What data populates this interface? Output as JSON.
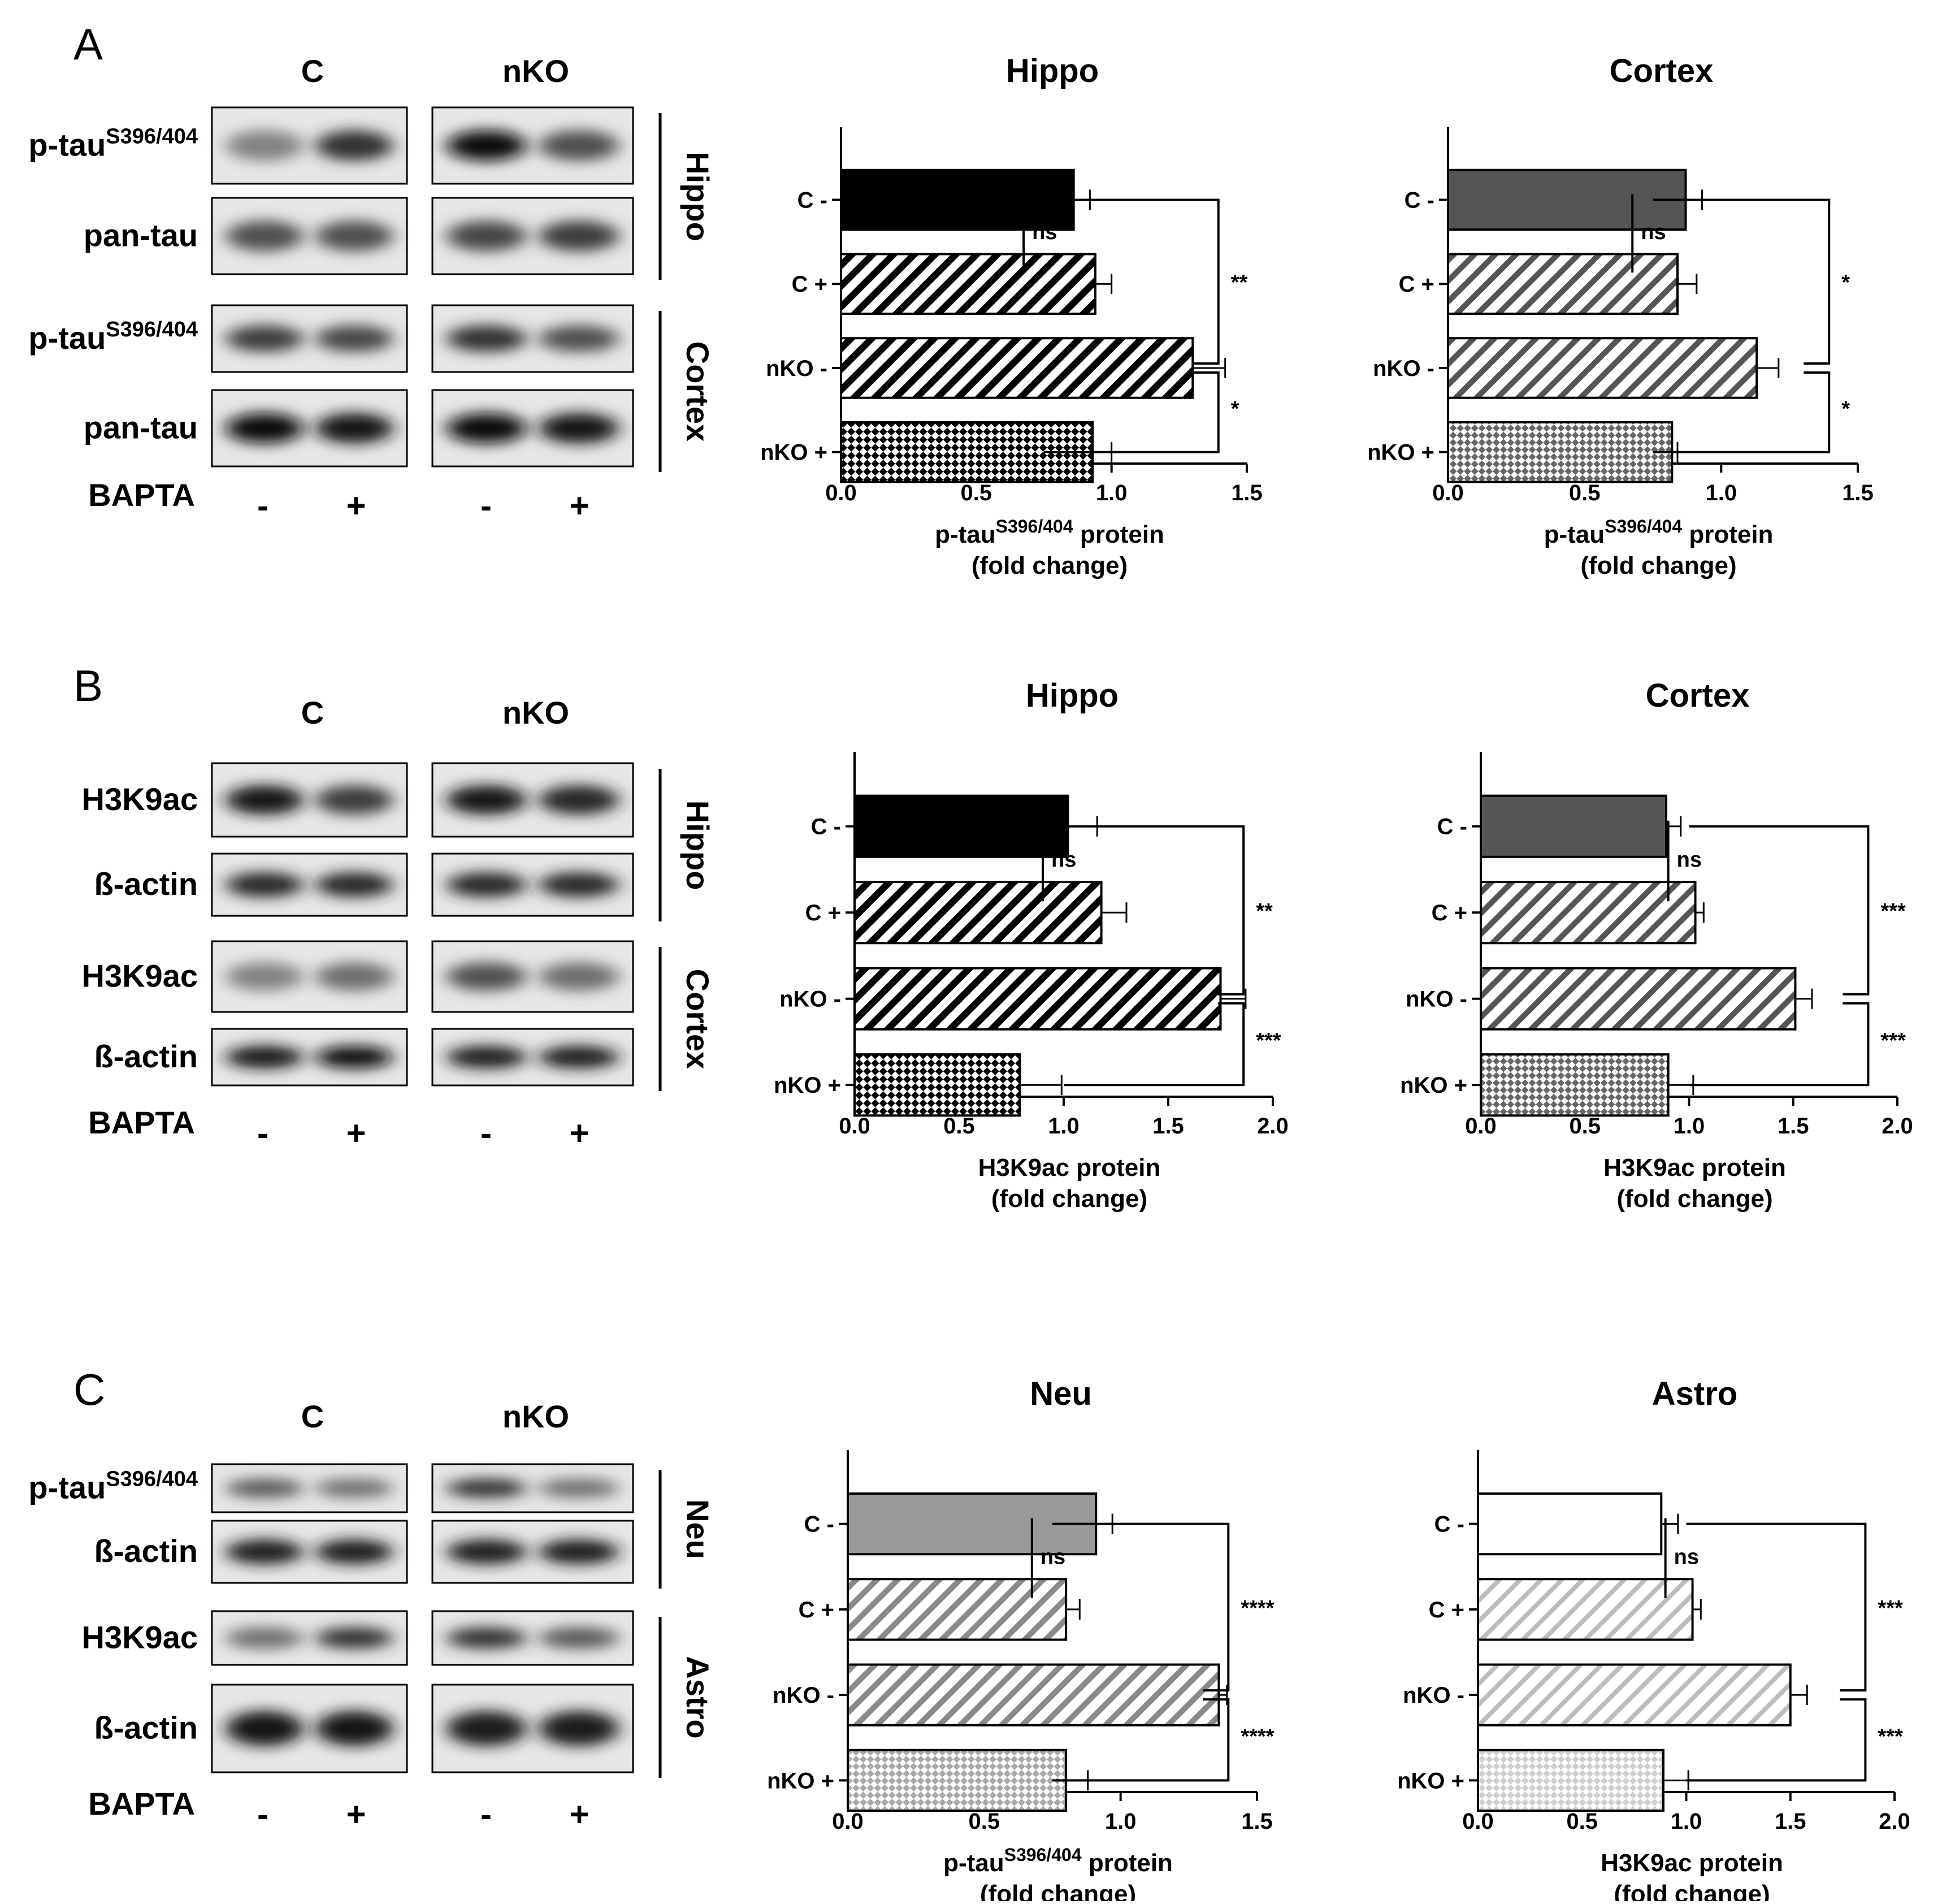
{
  "panels": [
    {
      "letter": "A",
      "groups": [
        "C",
        "nKO"
      ],
      "rows": [
        {
          "label": "p-tau",
          "sup": "S396/404",
          "region": "Hippo"
        },
        {
          "label": "pan-tau",
          "sup": "",
          "region": "Hippo"
        },
        {
          "label": "p-tau",
          "sup": "S396/404",
          "region": "Cortex"
        },
        {
          "label": "pan-tau",
          "sup": "",
          "region": "Cortex"
        }
      ],
      "regions": [
        "Hippo",
        "Cortex"
      ],
      "treatment_label": "BAPTA",
      "treatment_signs": [
        "-",
        "+",
        "-",
        "+"
      ]
    },
    {
      "letter": "B",
      "groups": [
        "C",
        "nKO"
      ],
      "rows": [
        {
          "label": "H3K9ac",
          "sup": "",
          "region": "Hippo"
        },
        {
          "label": "ß-actin",
          "sup": "",
          "region": "Hippo"
        },
        {
          "label": "H3K9ac",
          "sup": "",
          "region": "Cortex"
        },
        {
          "label": "ß-actin",
          "sup": "",
          "region": "Cortex"
        }
      ],
      "regions": [
        "Hippo",
        "Cortex"
      ],
      "treatment_label": "BAPTA",
      "treatment_signs": [
        "-",
        "+",
        "-",
        "+"
      ]
    },
    {
      "letter": "C",
      "groups": [
        "C",
        "nKO"
      ],
      "rows": [
        {
          "label": "p-tau",
          "sup": "S396/404",
          "region": "Neu"
        },
        {
          "label": "ß-actin",
          "sup": "",
          "region": "Neu"
        },
        {
          "label": "H3K9ac",
          "sup": "",
          "region": "Astro"
        },
        {
          "label": "ß-actin",
          "sup": "",
          "region": "Astro"
        }
      ],
      "regions": [
        "Neu",
        "Astro"
      ],
      "treatment_label": "BAPTA",
      "treatment_signs": [
        "-",
        "+",
        "-",
        "+"
      ]
    }
  ],
  "blot_intensities": [
    [
      [
        0.35,
        0.75,
        0.95,
        0.6
      ],
      [
        0.6,
        0.6,
        0.65,
        0.7
      ],
      [
        0.7,
        0.65,
        0.75,
        0.6
      ],
      [
        0.95,
        0.9,
        0.95,
        0.9
      ]
    ],
    [
      [
        0.9,
        0.7,
        0.9,
        0.8
      ],
      [
        0.8,
        0.8,
        0.8,
        0.8
      ],
      [
        0.35,
        0.45,
        0.6,
        0.45
      ],
      [
        0.9,
        0.95,
        0.85,
        0.85
      ]
    ],
    [
      [
        0.55,
        0.45,
        0.75,
        0.45
      ],
      [
        0.85,
        0.85,
        0.85,
        0.85
      ],
      [
        0.45,
        0.75,
        0.75,
        0.55
      ],
      [
        0.9,
        0.9,
        0.85,
        0.85
      ]
    ]
  ],
  "chart_data": [
    {
      "type": "bar",
      "orientation": "horizontal",
      "title": "Hippo",
      "categories": [
        "C -",
        "C +",
        "nKO -",
        "nKO +"
      ],
      "values": [
        0.86,
        0.94,
        1.3,
        0.93
      ],
      "errors": [
        0.06,
        0.06,
        0.12,
        0.07
      ],
      "fills": [
        "solid-black",
        "hatch-black",
        "hatch-black",
        "checker-black"
      ],
      "xlabel": {
        "main": "p-tau",
        "sup": "S396/404",
        "rest": " protein",
        "line2": "(fold change)"
      },
      "xlim": [
        0,
        1.5
      ],
      "xticks": [
        "0.0",
        "0.5",
        "1.0",
        "1.5"
      ],
      "significance": [
        "ns",
        "**",
        "*"
      ]
    },
    {
      "type": "bar",
      "orientation": "horizontal",
      "title": "Cortex",
      "categories": [
        "C -",
        "C +",
        "nKO -",
        "nKO +"
      ],
      "values": [
        0.87,
        0.84,
        1.13,
        0.82
      ],
      "errors": [
        0.06,
        0.07,
        0.08,
        0.02
      ],
      "fills": [
        "solid-darkgray",
        "hatch-darkgray",
        "hatch-darkgray",
        "checker-darkgray"
      ],
      "xlabel": {
        "main": "p-tau",
        "sup": "S396/404",
        "rest": " protein",
        "line2": "(fold change)"
      },
      "xlim": [
        0,
        1.5
      ],
      "xticks": [
        "0.0",
        "0.5",
        "1.0",
        "1.5"
      ],
      "significance": [
        "ns",
        "*",
        "*"
      ]
    },
    {
      "type": "bar",
      "orientation": "horizontal",
      "title": "Hippo",
      "categories": [
        "C -",
        "C +",
        "nKO -",
        "nKO +"
      ],
      "values": [
        1.02,
        1.18,
        1.75,
        0.79
      ],
      "errors": [
        0.14,
        0.12,
        0.12,
        0.2
      ],
      "fills": [
        "solid-black",
        "hatch-black",
        "hatch-black",
        "checker-black"
      ],
      "xlabel": {
        "main": "H3K9ac",
        "sup": "",
        "rest": " protein",
        "line2": "(fold change)"
      },
      "xlim": [
        0,
        2.0
      ],
      "xticks": [
        "0.0",
        "0.5",
        "1.0",
        "1.5",
        "2.0"
      ],
      "significance": [
        "ns",
        "**",
        "***"
      ]
    },
    {
      "type": "bar",
      "orientation": "horizontal",
      "title": "Cortex",
      "categories": [
        "C -",
        "C +",
        "nKO -",
        "nKO +"
      ],
      "values": [
        0.89,
        1.03,
        1.51,
        0.9
      ],
      "errors": [
        0.07,
        0.04,
        0.08,
        0.12
      ],
      "fills": [
        "solid-darkgray",
        "hatch-darkgray",
        "hatch-darkgray",
        "checker-darkgray"
      ],
      "xlabel": {
        "main": "H3K9ac",
        "sup": "",
        "rest": " protein",
        "line2": "(fold change)"
      },
      "xlim": [
        0,
        2.0
      ],
      "xticks": [
        "0.0",
        "0.5",
        "1.0",
        "1.5",
        "2.0"
      ],
      "significance": [
        "ns",
        "***",
        "***"
      ]
    },
    {
      "type": "bar",
      "orientation": "horizontal",
      "title": "Neu",
      "categories": [
        "C -",
        "C +",
        "nKO -",
        "nKO +"
      ],
      "values": [
        0.91,
        0.8,
        1.36,
        0.8
      ],
      "errors": [
        0.06,
        0.05,
        0.03,
        0.08
      ],
      "fills": [
        "solid-gray",
        "hatch-gray",
        "hatch-gray",
        "checker-gray"
      ],
      "xlabel": {
        "main": "p-tau",
        "sup": "S396/404",
        "rest": " protein",
        "line2": "(fold change)"
      },
      "xlim": [
        0,
        1.5
      ],
      "xticks": [
        "0.0",
        "0.5",
        "1.0",
        "1.5"
      ],
      "significance": [
        "ns",
        "****",
        "****"
      ]
    },
    {
      "type": "bar",
      "orientation": "horizontal",
      "title": "Astro",
      "categories": [
        "C -",
        "C +",
        "nKO -",
        "nKO +"
      ],
      "values": [
        0.88,
        1.03,
        1.5,
        0.89
      ],
      "errors": [
        0.08,
        0.04,
        0.08,
        0.12
      ],
      "fills": [
        "solid-white",
        "hatch-lightgray",
        "hatch-lightgray",
        "checker-lightgray"
      ],
      "xlabel": {
        "main": "H3K9ac",
        "sup": "",
        "rest": " protein",
        "line2": "(fold change)"
      },
      "xlim": [
        0,
        2.0
      ],
      "xticks": [
        "0.0",
        "0.5",
        "1.0",
        "1.5",
        "2.0"
      ],
      "significance": [
        "ns",
        "***",
        "***"
      ]
    }
  ]
}
